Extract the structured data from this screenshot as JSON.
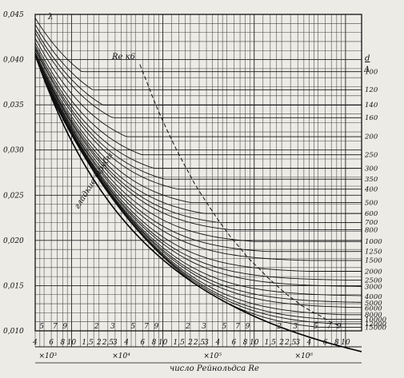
{
  "chart_data": {
    "type": "line",
    "title": "",
    "xlabel": "число Рейнольдса Re",
    "ylabel": "λ",
    "xscale": "log",
    "xlim": [
      4000,
      15000000
    ],
    "ylim": [
      0.01,
      0.045
    ],
    "yticks": [
      "0,010",
      "0,015",
      "0,020",
      "0,025",
      "0,030",
      "0,035",
      "0,040",
      "0,045"
    ],
    "x_row_top": [
      "5",
      "7",
      "9",
      "2",
      "3",
      "5",
      "7",
      "9",
      "2",
      "3",
      "5",
      "7",
      "9",
      "2",
      "3",
      "5",
      "7",
      "9"
    ],
    "x_row_bottom": [
      "4",
      "6",
      "8",
      "10",
      "1,5",
      "2",
      "2,5",
      "3",
      "4",
      "6",
      "8",
      "10",
      "1,5",
      "2",
      "2,5",
      "3",
      "4",
      "6",
      "8",
      "10",
      "1,5",
      "2",
      "2,5",
      "3",
      "4",
      "6",
      "8",
      "10"
    ],
    "decades": [
      "×10³",
      "×10⁴",
      "×10⁵",
      "×10⁶"
    ],
    "right_header": {
      "num": "d",
      "den": "Δ"
    },
    "series_labels": [
      "100",
      "120",
      "140",
      "160",
      "200",
      "250",
      "300",
      "350",
      "400",
      "500",
      "600",
      "700",
      "800",
      "1000",
      "1250",
      "1500",
      "2000",
      "2500",
      "3000",
      "4000",
      "5000",
      "6000",
      "8000",
      "10000",
      "12000",
      "15000"
    ],
    "series_lambda": [
      0.0387,
      0.0367,
      0.035,
      0.0336,
      0.0315,
      0.0295,
      0.028,
      0.0268,
      0.0257,
      0.0242,
      0.023,
      0.022,
      0.0212,
      0.0199,
      0.0188,
      0.0178,
      0.0166,
      0.0156,
      0.0149,
      0.0138,
      0.0131,
      0.0125,
      0.0118,
      0.0113,
      0.0108,
      0.0104
    ],
    "smooth_label": "гладкие трубы",
    "boundary_label": "Re к6",
    "grid": true
  }
}
